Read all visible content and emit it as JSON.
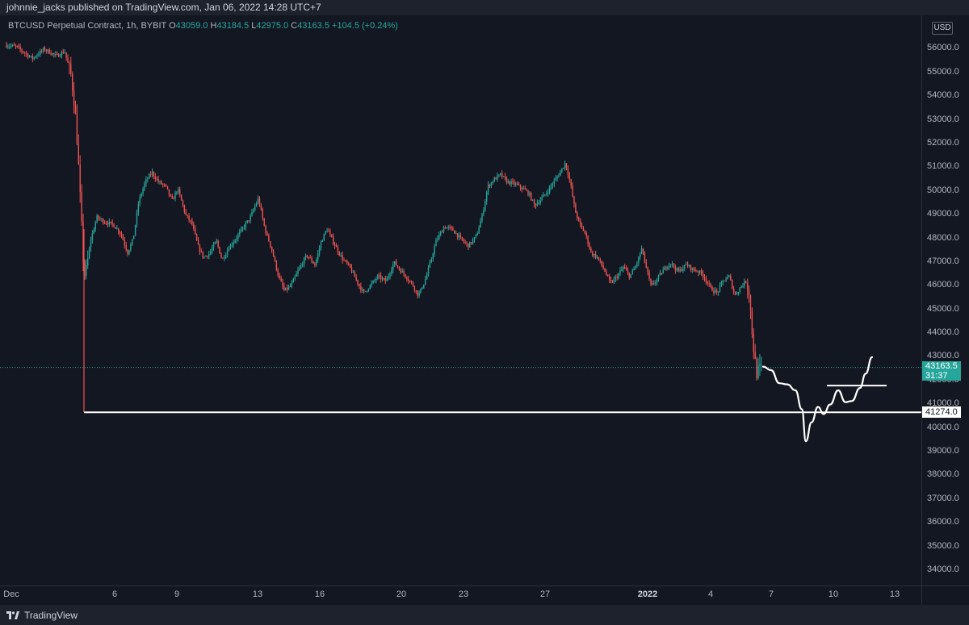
{
  "header": {
    "published_text": "johnnie_jacks published on TradingView.com, Jan 06, 2022 14:28 UTC+7"
  },
  "legend": {
    "symbol": "BTCUSD Perpetual Contract, 1h, BYBIT",
    "open_label": "O",
    "open": "43059.0",
    "high_label": "H",
    "high": "43184.5",
    "low_label": "L",
    "low": "42975.0",
    "close_label": "C",
    "close": "43163.5",
    "change": "+104.5 (+0.24%)"
  },
  "price_axis": {
    "currency": "USD",
    "labels": [
      "56000.0",
      "55000.0",
      "54000.0",
      "53000.0",
      "52000.0",
      "51000.0",
      "50000.0",
      "49000.0",
      "48000.0",
      "47000.0",
      "46000.0",
      "45000.0",
      "44000.0",
      "43000.0",
      "42000.0",
      "41000.0",
      "40000.0",
      "39000.0",
      "38000.0",
      "37000.0",
      "36000.0",
      "35000.0",
      "34000.0"
    ],
    "current_price": "43163.5",
    "countdown": "31:37",
    "level_price": "41274.0"
  },
  "time_axis": {
    "labels": [
      {
        "text": "Dec",
        "year": false
      },
      {
        "text": "6",
        "year": false
      },
      {
        "text": "9",
        "year": false
      },
      {
        "text": "13",
        "year": false
      },
      {
        "text": "16",
        "year": false
      },
      {
        "text": "20",
        "year": false
      },
      {
        "text": "23",
        "year": false
      },
      {
        "text": "27",
        "year": false
      },
      {
        "text": "2022",
        "year": true
      },
      {
        "text": "4",
        "year": false
      },
      {
        "text": "7",
        "year": false
      },
      {
        "text": "10",
        "year": false
      },
      {
        "text": "13",
        "year": false
      }
    ]
  },
  "footer": {
    "brand": "TradingView"
  },
  "colors": {
    "up": "#26a69a",
    "down": "#ef5350",
    "background": "#131722",
    "drawing": "#ffffff"
  },
  "chart_data": {
    "type": "candlestick",
    "interval": "1h",
    "y_range": [
      33500,
      57200
    ],
    "support_level": 41274.0,
    "current_price": 43163.5,
    "price_path": [
      [
        0,
        56800
      ],
      [
        20,
        56700
      ],
      [
        40,
        56200
      ],
      [
        55,
        56600
      ],
      [
        70,
        56300
      ],
      [
        80,
        56500
      ],
      [
        88,
        55500
      ],
      [
        93,
        54000
      ],
      [
        96,
        52500
      ],
      [
        99,
        50500
      ],
      [
        102,
        48500
      ],
      [
        104,
        47000
      ],
      [
        107,
        47300
      ],
      [
        112,
        48500
      ],
      [
        120,
        49500
      ],
      [
        130,
        49300
      ],
      [
        140,
        49200
      ],
      [
        150,
        48800
      ],
      [
        158,
        48000
      ],
      [
        165,
        48600
      ],
      [
        172,
        50200
      ],
      [
        180,
        51000
      ],
      [
        188,
        51400
      ],
      [
        196,
        51000
      ],
      [
        205,
        50800
      ],
      [
        213,
        50200
      ],
      [
        220,
        50700
      ],
      [
        230,
        49600
      ],
      [
        238,
        49200
      ],
      [
        245,
        48300
      ],
      [
        252,
        47800
      ],
      [
        260,
        48000
      ],
      [
        268,
        48500
      ],
      [
        275,
        47700
      ],
      [
        283,
        48200
      ],
      [
        292,
        48600
      ],
      [
        300,
        49000
      ],
      [
        310,
        49500
      ],
      [
        320,
        50300
      ],
      [
        328,
        49000
      ],
      [
        336,
        48200
      ],
      [
        345,
        47000
      ],
      [
        352,
        46400
      ],
      [
        360,
        46600
      ],
      [
        370,
        47300
      ],
      [
        380,
        47900
      ],
      [
        390,
        47500
      ],
      [
        398,
        48500
      ],
      [
        405,
        49000
      ],
      [
        415,
        48300
      ],
      [
        425,
        47700
      ],
      [
        433,
        47400
      ],
      [
        442,
        46800
      ],
      [
        450,
        46300
      ],
      [
        458,
        46600
      ],
      [
        468,
        47000
      ],
      [
        478,
        46800
      ],
      [
        488,
        47600
      ],
      [
        495,
        47300
      ],
      [
        503,
        47000
      ],
      [
        512,
        46600
      ],
      [
        518,
        46200
      ],
      [
        526,
        46800
      ],
      [
        533,
        47600
      ],
      [
        540,
        48500
      ],
      [
        550,
        49100
      ],
      [
        560,
        49000
      ],
      [
        570,
        48600
      ],
      [
        580,
        48300
      ],
      [
        590,
        48700
      ],
      [
        598,
        49700
      ],
      [
        604,
        50800
      ],
      [
        612,
        51100
      ],
      [
        620,
        51300
      ],
      [
        628,
        51000
      ],
      [
        638,
        50900
      ],
      [
        648,
        50700
      ],
      [
        655,
        50500
      ],
      [
        662,
        50000
      ],
      [
        668,
        50200
      ],
      [
        676,
        50500
      ],
      [
        684,
        50900
      ],
      [
        692,
        51300
      ],
      [
        700,
        51800
      ],
      [
        706,
        51000
      ],
      [
        712,
        49800
      ],
      [
        718,
        49200
      ],
      [
        725,
        48800
      ],
      [
        732,
        48000
      ],
      [
        740,
        47800
      ],
      [
        748,
        47300
      ],
      [
        756,
        46700
      ],
      [
        764,
        47000
      ],
      [
        772,
        47400
      ],
      [
        780,
        47000
      ],
      [
        788,
        47500
      ],
      [
        795,
        48200
      ],
      [
        800,
        47400
      ],
      [
        806,
        46600
      ],
      [
        812,
        46800
      ],
      [
        820,
        47200
      ],
      [
        830,
        47600
      ],
      [
        840,
        47200
      ],
      [
        850,
        47500
      ],
      [
        858,
        47300
      ],
      [
        866,
        47200
      ],
      [
        872,
        47000
      ],
      [
        880,
        46500
      ],
      [
        888,
        46300
      ],
      [
        895,
        46800
      ],
      [
        903,
        47000
      ],
      [
        910,
        46200
      ],
      [
        918,
        46600
      ],
      [
        924,
        46800
      ],
      [
        928,
        46300
      ],
      [
        931,
        44800
      ],
      [
        934,
        43700
      ],
      [
        937,
        42900
      ],
      [
        940,
        43100
      ],
      [
        944,
        43163.5
      ]
    ],
    "projection_path": [
      [
        945,
        43200
      ],
      [
        955,
        43050
      ],
      [
        965,
        42500
      ],
      [
        975,
        42450
      ],
      [
        985,
        42200
      ],
      [
        993,
        41400
      ],
      [
        998,
        40050
      ],
      [
        1005,
        40850
      ],
      [
        1013,
        41500
      ],
      [
        1020,
        41200
      ],
      [
        1028,
        41600
      ],
      [
        1038,
        42200
      ],
      [
        1047,
        41700
      ],
      [
        1055,
        41750
      ],
      [
        1065,
        42300
      ],
      [
        1072,
        42900
      ],
      [
        1080,
        43600
      ]
    ],
    "breakout_line": {
      "from": [
        1024,
        42400
      ],
      "to": [
        1098,
        42400
      ]
    }
  }
}
